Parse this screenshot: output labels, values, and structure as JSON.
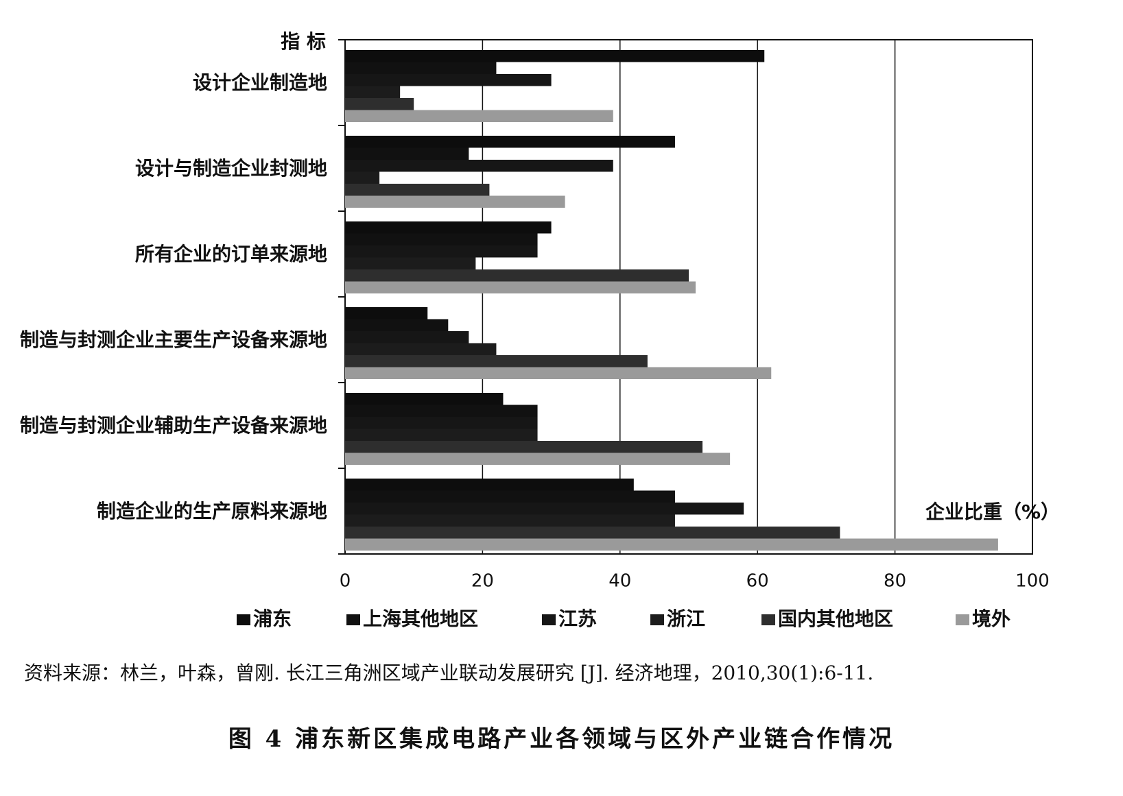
{
  "chart_data": {
    "type": "bar",
    "orientation": "horizontal",
    "y_axis_label": "指 标",
    "x_axis_label": "企业比重（%）",
    "categories": [
      "设计企业制造地",
      "设计与制造企业封测地",
      "所有企业的订单来源地",
      "制造与封测企业主要生产设备来源地",
      "制造与封测企业辅助生产设备来源地",
      "制造企业的生产原料来源地"
    ],
    "series": [
      {
        "name": "浦东",
        "color": "#0d0d0d",
        "values": [
          61,
          48,
          30,
          12,
          23,
          42
        ]
      },
      {
        "name": "上海其他地区",
        "color": "#111111",
        "values": [
          22,
          18,
          28,
          15,
          28,
          48
        ]
      },
      {
        "name": "江苏",
        "color": "#161616",
        "values": [
          30,
          39,
          28,
          18,
          28,
          58
        ]
      },
      {
        "name": "浙江",
        "color": "#1c1c1c",
        "values": [
          8,
          5,
          19,
          22,
          28,
          48
        ]
      },
      {
        "name": "国内其他地区",
        "color": "#2e2e2e",
        "values": [
          10,
          21,
          50,
          44,
          52,
          72
        ]
      },
      {
        "name": "境外",
        "color": "#9a9a9a",
        "values": [
          39,
          32,
          51,
          62,
          56,
          95
        ]
      }
    ],
    "xlim": [
      0,
      100
    ],
    "xticks": [
      0,
      20,
      40,
      60,
      80,
      100
    ],
    "grid": true
  },
  "source": "资料来源：林兰，叶森，曾刚. 长江三角洲区域产业联动发展研究 [J]. 经济地理，2010,30(1):6-11.",
  "caption": "图 4  浦东新区集成电路产业各领域与区外产业链合作情况"
}
